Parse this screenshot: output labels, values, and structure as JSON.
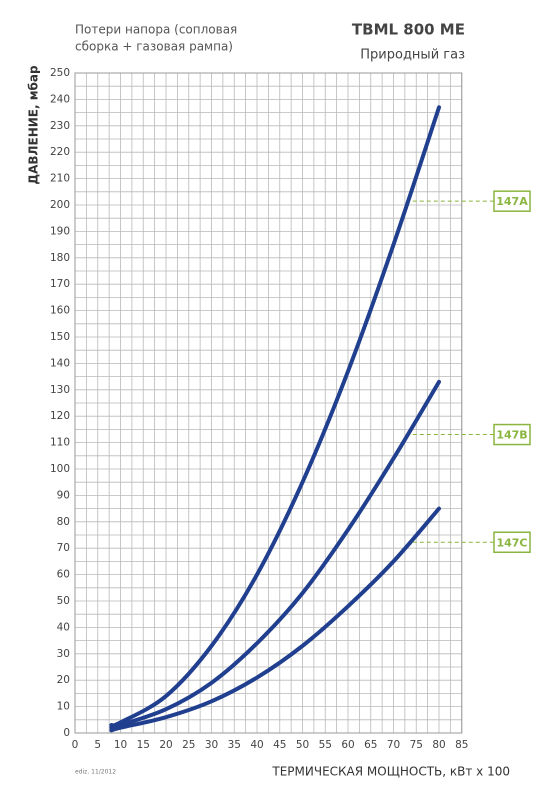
{
  "chart_data": {
    "type": "line",
    "title": "TBML 800 ME",
    "subtitle": "Природный газ",
    "note": [
      "Потери напора (сопловая",
      "сборка + газовая рампа)"
    ],
    "y_label": "ДАВЛЕНИЕ, мбар",
    "x_label": "ТЕРМИЧЕСКАЯ МОЩНОСТЬ, кВт x 100",
    "footnote": "ediz. 11/2012",
    "x": [
      8,
      10,
      20,
      30,
      40,
      50,
      60,
      70,
      80
    ],
    "series": [
      {
        "name": "147A",
        "color": "#213f8f",
        "values": [
          3,
          4,
          14,
          33,
          60,
          95,
          137,
          185,
          237
        ]
      },
      {
        "name": "147B",
        "color": "#213f8f",
        "values": [
          2,
          3,
          9,
          19,
          34,
          53,
          77,
          104,
          133
        ]
      },
      {
        "name": "147C",
        "color": "#213f8f",
        "values": [
          1,
          2,
          6,
          12,
          21,
          33,
          48,
          65,
          85
        ]
      }
    ],
    "label_color": "#8ab53e",
    "xlim": [
      0,
      85
    ],
    "xticks": [
      0,
      5,
      10,
      15,
      20,
      25,
      30,
      35,
      40,
      45,
      50,
      55,
      60,
      65,
      70,
      75,
      80,
      85
    ],
    "ylim": [
      0,
      250
    ],
    "yticks": [
      0,
      10,
      20,
      30,
      40,
      50,
      60,
      70,
      80,
      90,
      100,
      110,
      120,
      130,
      140,
      150,
      160,
      170,
      180,
      190,
      200,
      210,
      220,
      230,
      240,
      250
    ],
    "grid": true
  }
}
